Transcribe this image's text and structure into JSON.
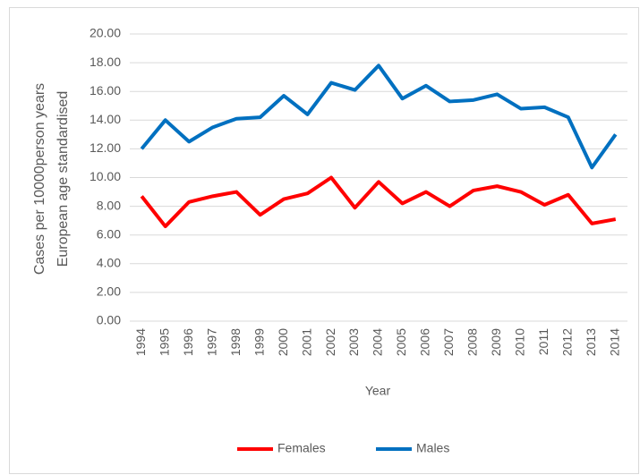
{
  "chart_data": {
    "type": "line",
    "ylabel": [
      "Cases per 10000person years",
      "European age standardised"
    ],
    "xlabel": "Year",
    "categories": [
      "1994",
      "1995",
      "1996",
      "1997",
      "1998",
      "1999",
      "2000",
      "2001",
      "2002",
      "2003",
      "2004",
      "2005",
      "2006",
      "2007",
      "2008",
      "2009",
      "2010",
      "2011",
      "2012",
      "2013",
      "2014"
    ],
    "series": [
      {
        "name": "Females",
        "color": "#ff0000",
        "values": [
          8.7,
          6.6,
          8.3,
          8.7,
          9.0,
          7.4,
          8.5,
          8.9,
          10.0,
          7.9,
          9.7,
          8.2,
          9.0,
          8.0,
          9.1,
          9.4,
          9.0,
          8.1,
          8.8,
          6.8,
          7.1
        ]
      },
      {
        "name": "Males",
        "color": "#0070c0",
        "values": [
          12.0,
          14.0,
          12.5,
          13.5,
          14.1,
          14.2,
          15.7,
          14.4,
          16.6,
          16.1,
          17.8,
          15.5,
          16.4,
          15.3,
          15.4,
          15.8,
          14.8,
          14.9,
          14.2,
          10.7,
          13.0
        ]
      }
    ],
    "ylim": [
      0,
      20
    ],
    "yticks": [
      {
        "value": 0,
        "label": "0.00"
      },
      {
        "value": 2,
        "label": "2.00"
      },
      {
        "value": 4,
        "label": "4.00"
      },
      {
        "value": 6,
        "label": "6.00"
      },
      {
        "value": 8,
        "label": "8.00"
      },
      {
        "value": 10,
        "label": "10.00"
      },
      {
        "value": 12,
        "label": "12.00"
      },
      {
        "value": 14,
        "label": "14.00"
      },
      {
        "value": 16,
        "label": "16.00"
      },
      {
        "value": 18,
        "label": "18.00"
      },
      {
        "value": 20,
        "label": "20.00"
      }
    ],
    "grid": true,
    "legend": "bottom"
  }
}
